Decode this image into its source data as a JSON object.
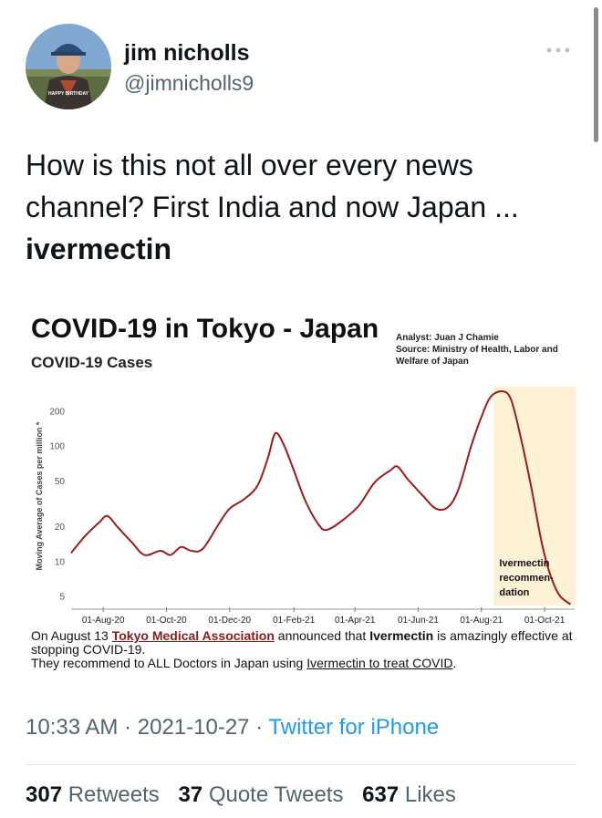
{
  "user": {
    "display_name": "jim nicholls",
    "handle": "@jimnicholls9",
    "avatar_caption": "HAPPY BIRTHDAY"
  },
  "more_icon": "more-horizontal-icon",
  "tweet": {
    "text_plain": "How is this not all over every news channel? First India and now Japan ... ",
    "text_bold": "ivermectin"
  },
  "media": {
    "chart_data": {
      "type": "line",
      "title": "COVID-19 in Tokyo - Japan",
      "subtitle": "COVID-19 Cases",
      "ylabel": "Moving Average of Cases per million *",
      "yscale": "log",
      "yticks": [
        5,
        10,
        20,
        50,
        100,
        200
      ],
      "ylim": [
        4.2,
        330
      ],
      "x_tick_labels": [
        "01-Aug-20",
        "01-Oct-20",
        "01-Dec-20",
        "01-Feb-21",
        "01-Apr-21",
        "01-Jun-21",
        "01-Aug-21",
        "01-Oct-21"
      ],
      "xlim": [
        "2020-07-01",
        "2021-10-30"
      ],
      "series": [
        {
          "color": "#9b1c1c",
          "points": [
            [
              "2020-07-01",
              12
            ],
            [
              "2020-07-15",
              17
            ],
            [
              "2020-07-28",
              22
            ],
            [
              "2020-08-05",
              25
            ],
            [
              "2020-08-15",
              20
            ],
            [
              "2020-08-28",
              15
            ],
            [
              "2020-09-10",
              11.5
            ],
            [
              "2020-09-25",
              12.5
            ],
            [
              "2020-10-05",
              11.5
            ],
            [
              "2020-10-15",
              13.5
            ],
            [
              "2020-10-25",
              12.5
            ],
            [
              "2020-11-05",
              13
            ],
            [
              "2020-11-20",
              21
            ],
            [
              "2020-12-01",
              29
            ],
            [
              "2020-12-15",
              35
            ],
            [
              "2020-12-28",
              46
            ],
            [
              "2021-01-07",
              80
            ],
            [
              "2021-01-14",
              130
            ],
            [
              "2021-01-22",
              105
            ],
            [
              "2021-02-01",
              62
            ],
            [
              "2021-02-12",
              34
            ],
            [
              "2021-02-25",
              21
            ],
            [
              "2021-03-05",
              19
            ],
            [
              "2021-03-20",
              23
            ],
            [
              "2021-04-05",
              31
            ],
            [
              "2021-04-20",
              49
            ],
            [
              "2021-05-05",
              62
            ],
            [
              "2021-05-12",
              67
            ],
            [
              "2021-05-22",
              52
            ],
            [
              "2021-06-05",
              38
            ],
            [
              "2021-06-18",
              29
            ],
            [
              "2021-06-30",
              30
            ],
            [
              "2021-07-10",
              43
            ],
            [
              "2021-07-22",
              100
            ],
            [
              "2021-08-01",
              180
            ],
            [
              "2021-08-10",
              270
            ],
            [
              "2021-08-22",
              300
            ],
            [
              "2021-08-30",
              250
            ],
            [
              "2021-09-08",
              120
            ],
            [
              "2021-09-18",
              45
            ],
            [
              "2021-09-28",
              15
            ],
            [
              "2021-10-06",
              8
            ],
            [
              "2021-10-15",
              5.2
            ],
            [
              "2021-10-26",
              4.3
            ]
          ]
        }
      ],
      "highlight_region": {
        "from": "2021-08-13",
        "to": "2021-10-26",
        "color": "#fdf1d6"
      },
      "annotation": {
        "lines": [
          "Ivermectin",
          "recommen-",
          "dation"
        ]
      }
    },
    "analyst": "Analyst: Juan J Chamie",
    "source": "Source: Ministry of Health, Labor and Welfare of Japan",
    "caption": {
      "part1": "On August 13 ",
      "link1": "Tokyo Medical Association",
      "part2": " announced that ",
      "bold1": "Ivermectin",
      "part3": " is amazingly effective at stopping COVID-19.",
      "line2": "They recommend to ALL Doctors in Japan using ",
      "link2": "Ivermectin to treat COVID",
      "line2_end": "."
    }
  },
  "meta": {
    "time": "10:33 AM",
    "date": "2021-10-27",
    "separator": "·",
    "source": "Twitter for iPhone"
  },
  "stats": {
    "retweets_count": "307",
    "retweets_label": "Retweets",
    "quotes_count": "37",
    "quotes_label": "Quote Tweets",
    "likes_count": "637",
    "likes_label": "Likes"
  }
}
